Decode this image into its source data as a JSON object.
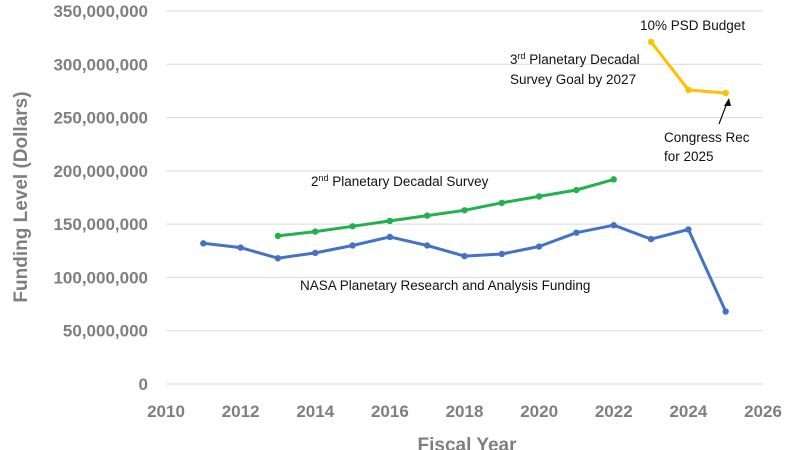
{
  "chart_data": {
    "type": "line",
    "xlabel": "Fiscal Year",
    "ylabel": "Funding Level (Dollars)",
    "xlim": [
      2010,
      2026
    ],
    "ylim": [
      0,
      350000000
    ],
    "x_ticks": [
      "2010",
      "2012",
      "2014",
      "2016",
      "2018",
      "2020",
      "2022",
      "2024",
      "2026"
    ],
    "y_ticks": [
      "0",
      "50,000,000",
      "100,000,000",
      "150,000,000",
      "200,000,000",
      "250,000,000",
      "300,000,000",
      "350,000,000"
    ],
    "grid": true,
    "series": [
      {
        "name": "NASA Planetary Research and Analysis Funding",
        "color": "#4472c4",
        "x": [
          2011,
          2012,
          2013,
          2014,
          2015,
          2016,
          2017,
          2018,
          2019,
          2020,
          2021,
          2022,
          2023,
          2024,
          2025
        ],
        "values": [
          132000000,
          128000000,
          118000000,
          123000000,
          130000000,
          138000000,
          130000000,
          120000000,
          122000000,
          129000000,
          142000000,
          149000000,
          136000000,
          145000000,
          68000000
        ]
      },
      {
        "name": "2nd Planetary Decadal Survey",
        "color": "#22b14c",
        "x": [
          2013,
          2014,
          2015,
          2016,
          2017,
          2018,
          2019,
          2020,
          2021,
          2022
        ],
        "values": [
          139000000,
          143000000,
          148000000,
          153000000,
          158000000,
          163000000,
          170000000,
          176000000,
          182000000,
          192000000
        ]
      },
      {
        "name": "3rd Planetary Decadal Survey Goal by 2027",
        "color": "#ffc000",
        "x": [
          2023,
          2024,
          2025
        ],
        "values": [
          321000000,
          276000000,
          273000000
        ]
      }
    ],
    "annotations": [
      {
        "label": "NASA Planetary Research and Analysis Funding"
      },
      {
        "label": "2",
        "sup": "nd",
        "rest": " Planetary Decadal Survey"
      },
      {
        "label": "3",
        "sup": "rd",
        "rest": " Planetary Decadal",
        "line2": "Survey Goal by 2027"
      },
      {
        "label": "10% PSD Budget"
      },
      {
        "label": "Congress Rec",
        "line2": "for 2025"
      }
    ]
  }
}
